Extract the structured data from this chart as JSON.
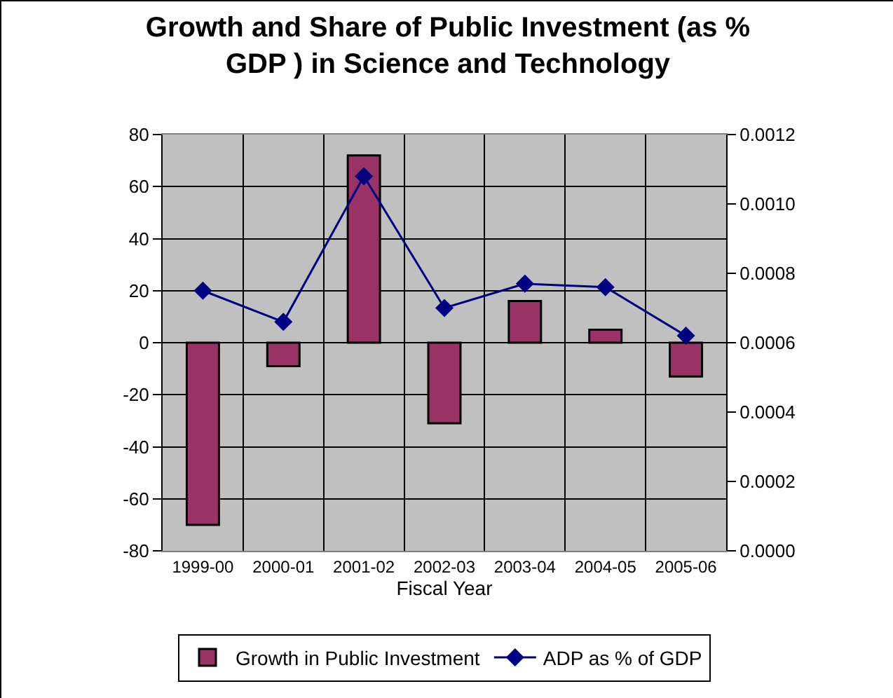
{
  "chart_data": {
    "type": "bar",
    "title": "Growth and Share of Public Investment (as % GDP ) in Science and Technology",
    "xlabel": "Fiscal Year",
    "categories": [
      "1999-00",
      "2000-01",
      "2001-02",
      "2002-03",
      "2003-04",
      "2004-05",
      "2005-06"
    ],
    "series": [
      {
        "name": "Growth in Public Investment",
        "color": "#993366",
        "values": [
          -70,
          -9,
          72,
          -31,
          16,
          5,
          -13
        ]
      },
      {
        "name": "ADP as % of GDP",
        "type": "line",
        "axis": "y2",
        "color": "#000080",
        "marker": "diamond",
        "values": [
          0.00075,
          0.00066,
          0.00108,
          0.0007,
          0.00077,
          0.00076,
          0.00062
        ]
      }
    ],
    "ylim": [
      -80,
      80
    ],
    "yticks": [
      -80,
      -60,
      -40,
      -20,
      0,
      20,
      40,
      60,
      80
    ],
    "y2lim": [
      0,
      0.0012
    ],
    "y2ticks": [
      {
        "value": 0,
        "label": "0.0000"
      },
      {
        "value": 0.0002,
        "label": "0.0002"
      },
      {
        "value": 0.0004,
        "label": "0.0004"
      },
      {
        "value": 0.0006,
        "label": "0.0006"
      },
      {
        "value": 0.0008,
        "label": "0.0008"
      },
      {
        "value": 0.001,
        "label": "0.0010"
      },
      {
        "value": 0.0012,
        "label": "0.0012"
      }
    ],
    "grid": true,
    "legend": "bottom"
  }
}
